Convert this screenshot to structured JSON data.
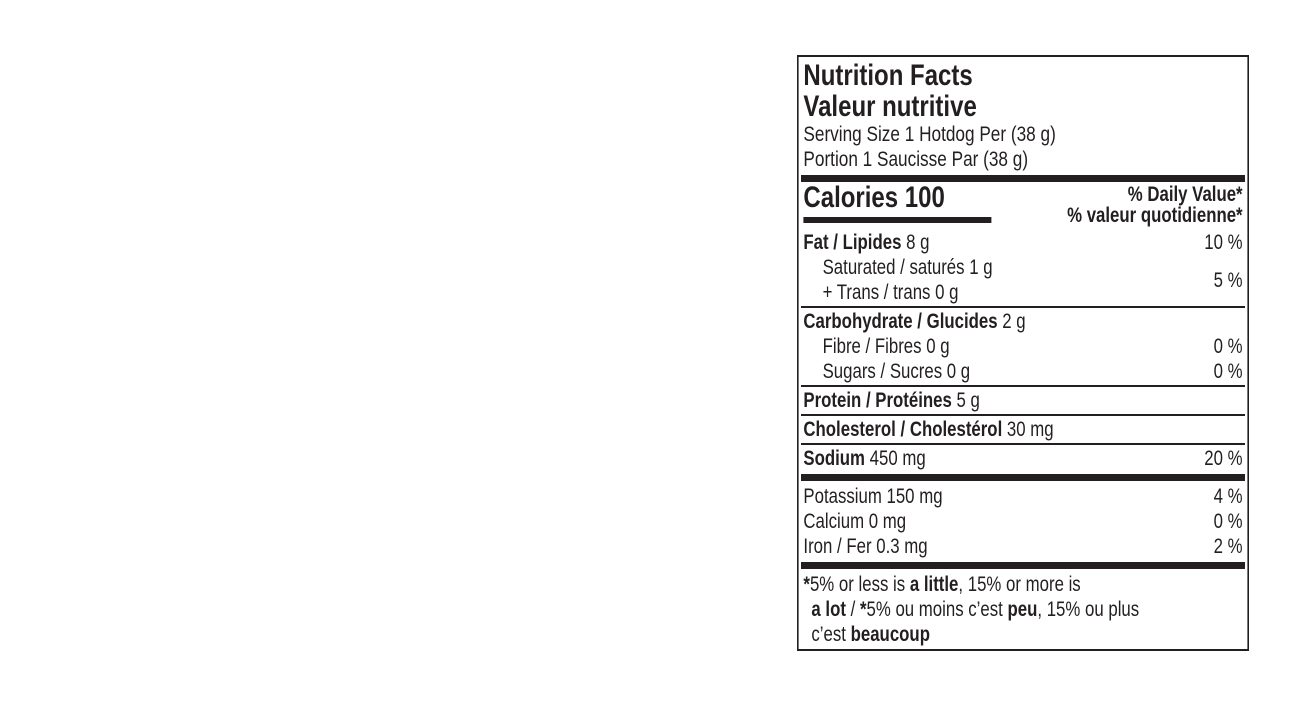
{
  "colors": {
    "ink": "#231f20",
    "background": "#ffffff"
  },
  "label": {
    "title_en": "Nutrition Facts",
    "title_fr": "Valeur nutritive",
    "serving_en": "Serving Size 1 Hotdog Per (38 g)",
    "serving_fr": "Portion 1 Saucisse Par (38 g)",
    "calories_label": "Calories",
    "calories_value": "100",
    "dv_header_en": "% Daily Value*",
    "dv_header_fr": "% valeur quotidienne*",
    "rows": {
      "fat": {
        "bold": "Fat / Lipides",
        "rest": " 8 g",
        "dv": "10 %"
      },
      "saturated": {
        "line1": "Saturated / saturés 1 g",
        "line2": "+ Trans / trans 0 g",
        "dv": "5 %"
      },
      "carbohydrate": {
        "bold": "Carbohydrate / Glucides",
        "rest": " 2 g"
      },
      "fibre": {
        "text": "Fibre / Fibres 0 g",
        "dv": "0 %"
      },
      "sugars": {
        "text": "Sugars / Sucres 0 g",
        "dv": "0 %"
      },
      "protein": {
        "bold": "Protein / Protéines",
        "rest": " 5 g"
      },
      "cholesterol": {
        "bold": "Cholesterol / Cholestérol",
        "rest": " 30 mg"
      },
      "sodium": {
        "bold": "Sodium",
        "rest": " 450 mg",
        "dv": "20 %"
      },
      "potassium": {
        "text": "Potassium 150 mg",
        "dv": "4 %"
      },
      "calcium": {
        "text": "Calcium 0 mg",
        "dv": "0 %"
      },
      "iron": {
        "text": "Iron / Fer 0.3 mg",
        "dv": "2 %"
      }
    },
    "footnote": {
      "l1_star": "*",
      "l1_a": "5% or less is ",
      "l1_b": "a little",
      "l1_c": ", 15% or more is",
      "l2_a": "a lot",
      "l2_b": " / ",
      "l2_star": "*",
      "l2_c": "5% ou moins c’est ",
      "l2_d": "peu",
      "l2_e": ", 15% ou plus",
      "l3_a": "c’est ",
      "l3_b": "beaucoup"
    }
  }
}
